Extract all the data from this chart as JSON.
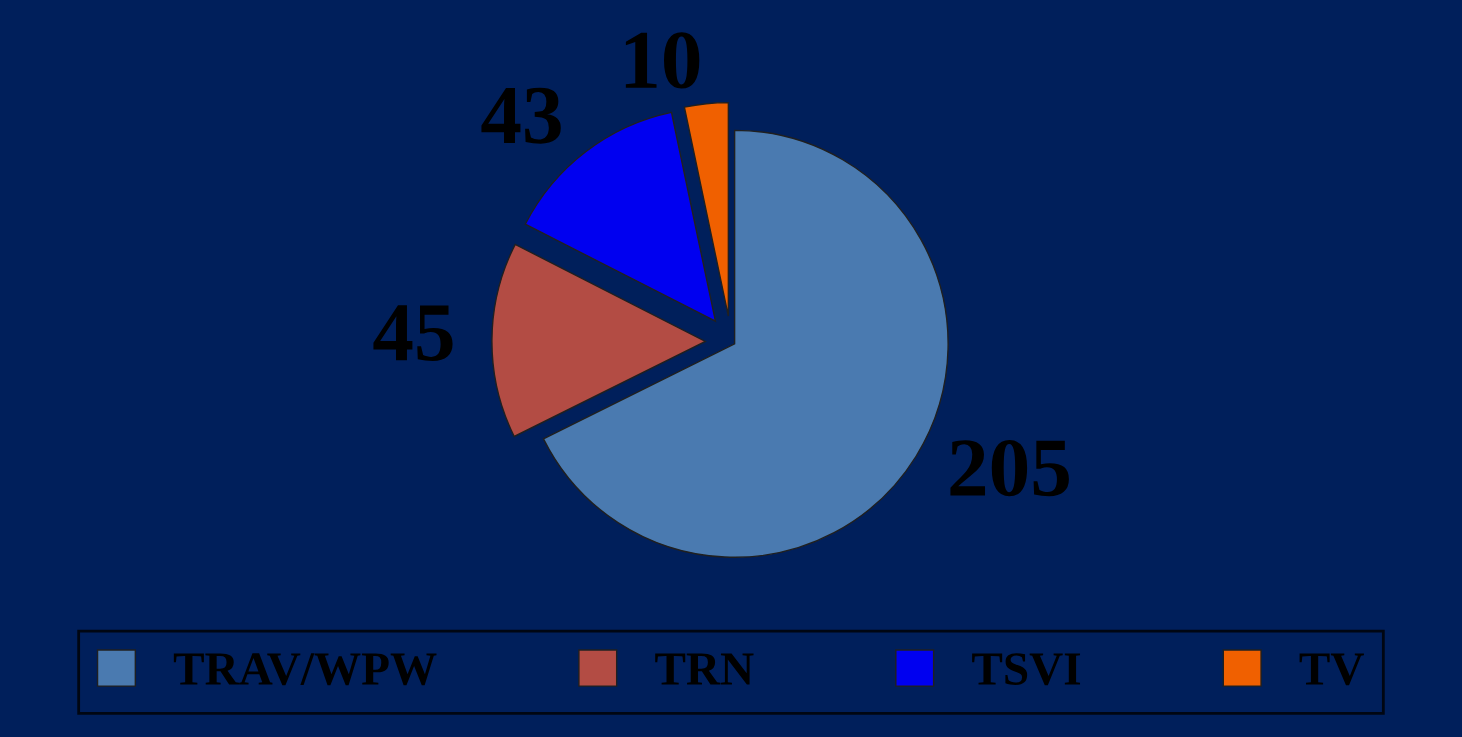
{
  "chart_data": {
    "type": "pie",
    "categories": [
      "TRAV/WPW",
      "TRN",
      "TSVI",
      "TV"
    ],
    "values": [
      205,
      45,
      43,
      10
    ],
    "colors": [
      "#4a7ab0",
      "#b34c44",
      "#0000f0",
      "#f06000"
    ],
    "data_labels": true,
    "legend": "bottom"
  }
}
